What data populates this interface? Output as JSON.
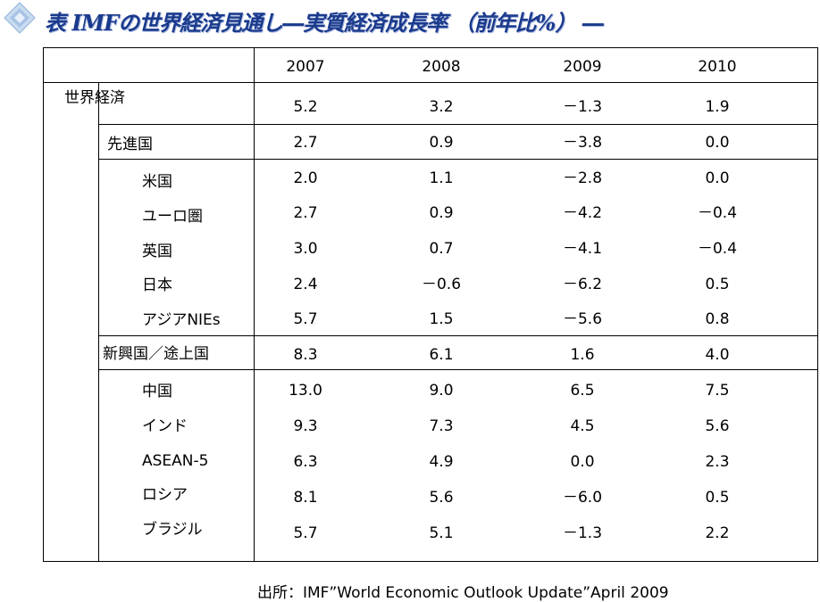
{
  "title": "表 IMFの世界経済見通し―実質経済成長率 （前年比%） ―",
  "years": [
    "2007",
    "2008",
    "2009",
    "2010"
  ],
  "rows": [
    {
      "label": "世界経済",
      "values": [
        "5.2",
        "3.2",
        "－1.3",
        "1.9"
      ]
    },
    {
      "label": "先進国",
      "values": [
        "2.7",
        "0.9",
        "－3.8",
        "0.0"
      ]
    },
    {
      "label": "米国",
      "values": [
        "2.0",
        "1.1",
        "－2.8",
        "0.0"
      ]
    },
    {
      "label": "ユーロ圏",
      "values": [
        "2.7",
        "0.9",
        "－4.2",
        "－0.4"
      ]
    },
    {
      "label": "英国",
      "values": [
        "3.0",
        "0.7",
        "－4.1",
        "－0.4"
      ]
    },
    {
      "label": "日本",
      "values": [
        "2.4",
        "－0.6",
        "－6.2",
        "0.5"
      ]
    },
    {
      "label": "アジアNIEs",
      "values": [
        "5.7",
        "1.5",
        "－5.6",
        "0.8"
      ]
    },
    {
      "label": "新興国／途上国",
      "values": [
        "8.3",
        "6.1",
        "1.6",
        "4.0"
      ]
    },
    {
      "label": "中国",
      "values": [
        "13.0",
        "9.0",
        "6.5",
        "7.5"
      ]
    },
    {
      "label": "インド",
      "values": [
        "9.3",
        "7.3",
        "4.5",
        "5.6"
      ]
    },
    {
      "label": "ASEAN-5",
      "values": [
        "6.3",
        "4.9",
        "0.0",
        "2.3"
      ]
    },
    {
      "label": "ロシア",
      "values": [
        "8.1",
        "5.6",
        "－6.0",
        "0.5"
      ]
    },
    {
      "label": "ブラジル",
      "values": [
        "5.7",
        "5.1",
        "－1.3",
        "2.2"
      ]
    }
  ],
  "source": "出所：IMF”World Economic Outlook Update”April 2009",
  "colors": {
    "title": "#1a3a8c",
    "diamond": "#8fb0d8"
  }
}
